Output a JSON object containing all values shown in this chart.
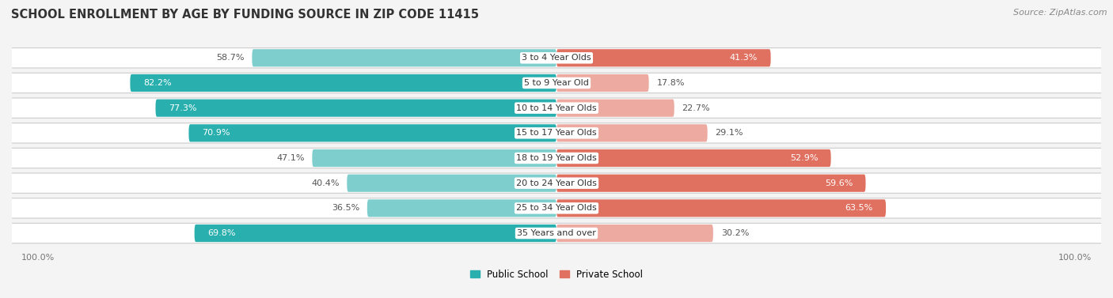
{
  "title": "SCHOOL ENROLLMENT BY AGE BY FUNDING SOURCE IN ZIP CODE 11415",
  "source": "Source: ZipAtlas.com",
  "categories": [
    "3 to 4 Year Olds",
    "5 to 9 Year Old",
    "10 to 14 Year Olds",
    "15 to 17 Year Olds",
    "18 to 19 Year Olds",
    "20 to 24 Year Olds",
    "25 to 34 Year Olds",
    "35 Years and over"
  ],
  "public_pct": [
    58.7,
    82.2,
    77.3,
    70.9,
    47.1,
    40.4,
    36.5,
    69.8
  ],
  "private_pct": [
    41.3,
    17.8,
    22.7,
    29.1,
    52.9,
    59.6,
    63.5,
    30.2
  ],
  "public_color_dark": "#2AAFAF",
  "public_color_light": "#7ECECE",
  "private_color_dark": "#E07060",
  "private_color_light": "#EDAAA0",
  "row_bg_color": "#EFEFEF",
  "row_border_color": "#CCCCCC",
  "background_color": "#F4F4F4",
  "title_fontsize": 10.5,
  "source_fontsize": 8,
  "bar_fontsize": 8,
  "cat_fontsize": 8,
  "legend_labels": [
    "Public School",
    "Private School"
  ],
  "xlim": 105,
  "bar_height": 0.7
}
